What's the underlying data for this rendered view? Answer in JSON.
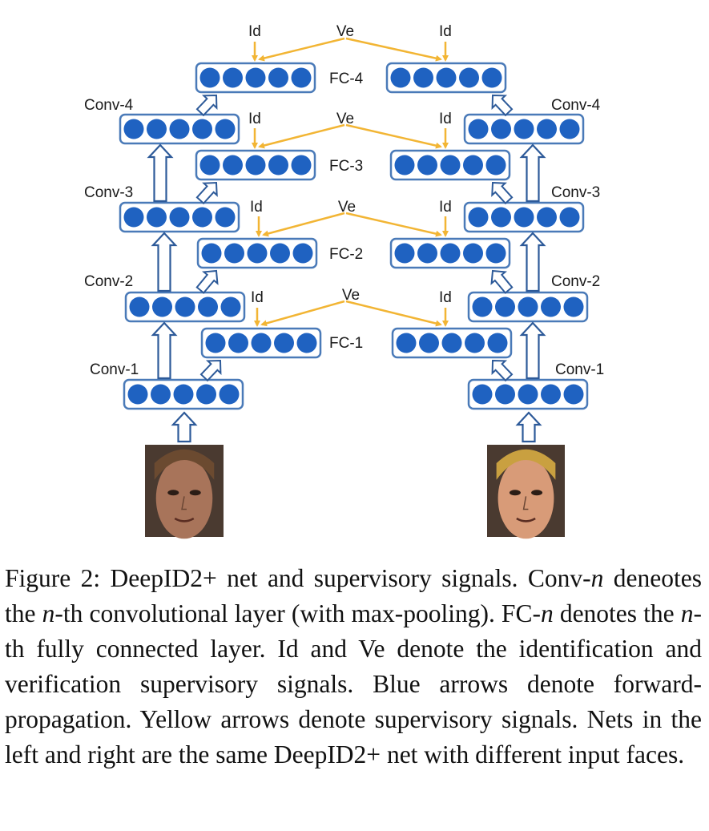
{
  "colors": {
    "layer_box_stroke": "#4a7ab8",
    "neuron_fill": "#1f62c1",
    "forward_arrow": "#2d5a99",
    "supervisory_arrow": "#f2b534",
    "face_left": "#a8745a",
    "face_right": "#d89b78"
  },
  "labels": {
    "id": "Id",
    "ve": "Ve"
  },
  "left_net": {
    "conv": [
      "Conv-1",
      "Conv-2",
      "Conv-3",
      "Conv-4"
    ],
    "fc": [
      "FC-1",
      "FC-2",
      "FC-3",
      "FC-4"
    ]
  },
  "right_net": {
    "conv": [
      "Conv-1",
      "Conv-2",
      "Conv-3",
      "Conv-4"
    ]
  },
  "inputs": {
    "left_face": "input-face-left",
    "right_face": "input-face-right"
  },
  "caption": {
    "label": "Figure 2:",
    "t1": " DeepID2+ net and supervisory signals. Conv-",
    "n1": "n",
    "t2": " deneotes the ",
    "n2": "n",
    "t3": "-th convolutional layer (with max-pooling). FC-",
    "n3": "n",
    "t4": " denotes the ",
    "n4": "n",
    "t5": "-th fully connected layer.  Id and Ve denote the identification and verification supervisory signals. Blue arrows denote forward-propagation. Yellow arrows denote supervisory signals. Nets in the left and right are the same DeepID2+ net with different input faces."
  }
}
